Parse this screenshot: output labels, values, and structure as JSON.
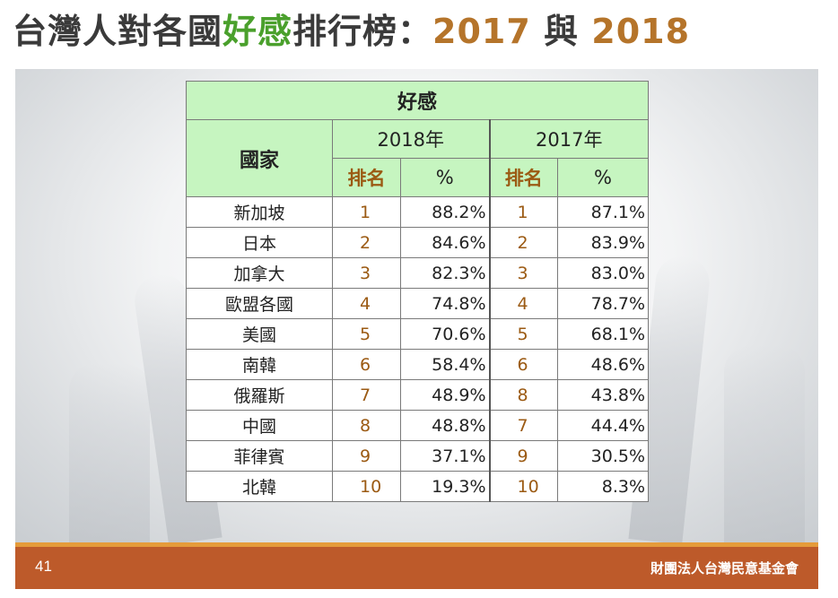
{
  "title": {
    "part1": "台灣人對各國",
    "highlight": "好感",
    "part2": "排行榜：",
    "year_a": "2017",
    "mid": " 與 ",
    "year_b": "2018"
  },
  "table": {
    "main_header": "好感",
    "country_header": "國家",
    "year_2018": "2018年",
    "year_2017": "2017年",
    "rank_label": "排名",
    "pct_label": "%",
    "rows": [
      {
        "country": "新加坡",
        "rank_2018": "1",
        "pct_2018": "88.2%",
        "rank_2017": "1",
        "pct_2017": "87.1%"
      },
      {
        "country": "日本",
        "rank_2018": "2",
        "pct_2018": "84.6%",
        "rank_2017": "2",
        "pct_2017": "83.9%"
      },
      {
        "country": "加拿大",
        "rank_2018": "3",
        "pct_2018": "82.3%",
        "rank_2017": "3",
        "pct_2017": "83.0%"
      },
      {
        "country": "歐盟各國",
        "rank_2018": "4",
        "pct_2018": "74.8%",
        "rank_2017": "4",
        "pct_2017": "78.7%"
      },
      {
        "country": "美國",
        "rank_2018": "5",
        "pct_2018": "70.6%",
        "rank_2017": "5",
        "pct_2017": "68.1%"
      },
      {
        "country": "南韓",
        "rank_2018": "6",
        "pct_2018": "58.4%",
        "rank_2017": "6",
        "pct_2017": "48.6%"
      },
      {
        "country": "俄羅斯",
        "rank_2018": "7",
        "pct_2018": "48.9%",
        "rank_2017": "8",
        "pct_2017": "43.8%"
      },
      {
        "country": "中國",
        "rank_2018": "8",
        "pct_2018": "48.8%",
        "rank_2017": "7",
        "pct_2017": "44.4%"
      },
      {
        "country": "菲律賓",
        "rank_2018": "9",
        "pct_2018": "37.1%",
        "rank_2017": "9",
        "pct_2017": "30.5%"
      },
      {
        "country": "北韓",
        "rank_2018": "10",
        "pct_2018": "19.3%",
        "rank_2017": "10",
        "pct_2017": "8.3%"
      }
    ]
  },
  "footer": {
    "page_number": "41",
    "organization": "財團法人台灣民意基金會"
  },
  "colors": {
    "header_green": "#c6f5c0",
    "title_green": "#4aa02c",
    "title_brown": "#b5742a",
    "rank_brown": "#9b5a13",
    "footer_orange": "#bd5a2a"
  }
}
